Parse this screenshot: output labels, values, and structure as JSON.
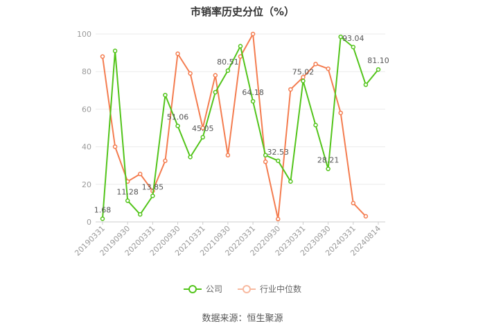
{
  "chart_data": {
    "type": "line",
    "title": "市销率历史分位（%）",
    "xlabel": "",
    "ylabel": "",
    "ylim": [
      0,
      100
    ],
    "yticks": [
      0,
      20,
      40,
      60,
      80,
      100
    ],
    "grid": true,
    "legend_position": "bottom",
    "x_tick_labels": [
      "20190331",
      "20190930",
      "20200331",
      "20200930",
      "20210331",
      "20210930",
      "20220331",
      "20220930",
      "20230331",
      "20230930",
      "20240331",
      "20240814"
    ],
    "series": [
      {
        "name": "公司",
        "color": "#52c41a",
        "values": [
          1.68,
          91,
          11.28,
          4,
          13.85,
          67.5,
          51.06,
          34.5,
          45.05,
          69,
          80.51,
          93.5,
          64.18,
          35.5,
          32.53,
          21.5,
          75.02,
          51.5,
          28.21,
          98.5,
          93.04,
          73,
          81.1
        ],
        "labels": [
          "1.68",
          "",
          "11.28",
          "",
          "13.85",
          "",
          "51.06",
          "",
          "45.05",
          "",
          "80.51",
          "",
          "64.18",
          "",
          "32.53",
          "",
          "75.02",
          "",
          "28.21",
          "",
          "93.04",
          "",
          "81.10"
        ]
      },
      {
        "name": "行业中位数",
        "color": "#f47c4f",
        "values": [
          88,
          40,
          21.5,
          25.5,
          16.5,
          32.5,
          89.5,
          79,
          50,
          78,
          35.5,
          88,
          100,
          32,
          1.5,
          70.5,
          77,
          84,
          81.5,
          58,
          10,
          3,
          null
        ]
      }
    ],
    "source": "数据来源：恒生聚源"
  }
}
